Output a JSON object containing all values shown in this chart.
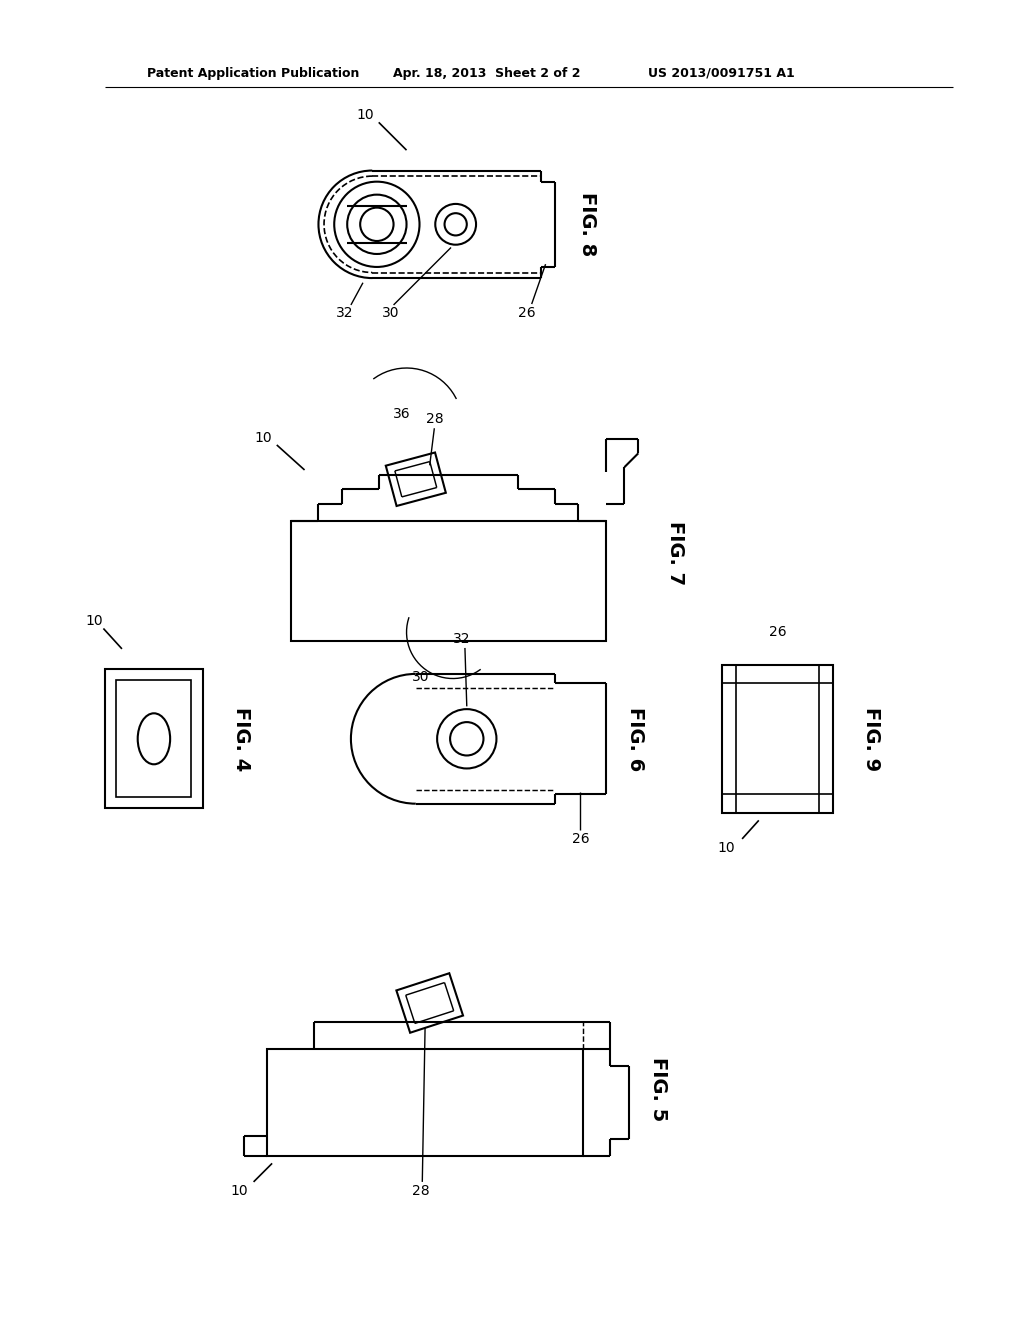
{
  "bg_color": "#ffffff",
  "line_color": "#000000",
  "header_left": "Patent Application Publication",
  "header_mid": "Apr. 18, 2013  Sheet 2 of 2",
  "header_right": "US 2013/0091751 A1",
  "fig_width": 10.24,
  "fig_height": 13.2
}
